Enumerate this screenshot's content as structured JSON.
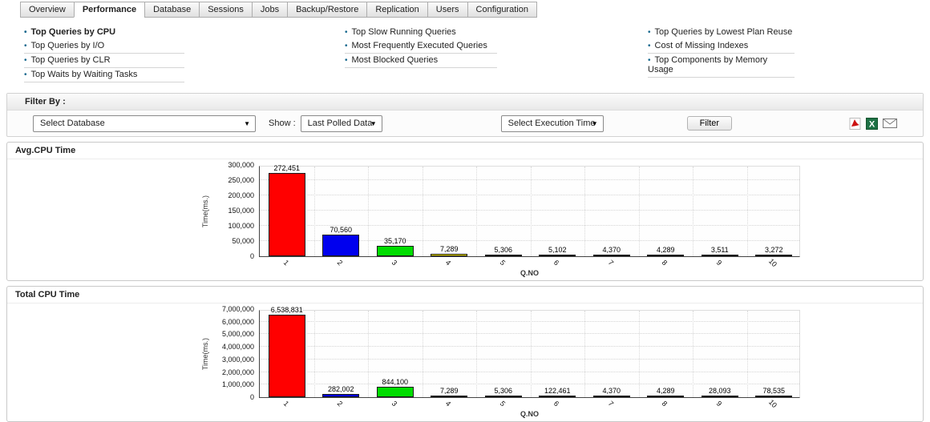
{
  "tabs": {
    "items": [
      {
        "label": "Overview",
        "active": false
      },
      {
        "label": "Performance",
        "active": true
      },
      {
        "label": "Database",
        "active": false
      },
      {
        "label": "Sessions",
        "active": false
      },
      {
        "label": "Jobs",
        "active": false
      },
      {
        "label": "Backup/Restore",
        "active": false
      },
      {
        "label": "Replication",
        "active": false
      },
      {
        "label": "Users",
        "active": false
      },
      {
        "label": "Configuration",
        "active": false
      }
    ]
  },
  "report_links": {
    "columns": [
      {
        "items": [
          {
            "label": "Top Queries by CPU",
            "bold": true
          },
          {
            "label": "Top Queries by I/O",
            "bold": false
          },
          {
            "label": "Top Queries by CLR",
            "bold": false
          },
          {
            "label": "Top Waits by Waiting Tasks",
            "bold": false
          }
        ]
      },
      {
        "items": [
          {
            "label": "Top Slow Running Queries",
            "bold": false
          },
          {
            "label": "Most Frequently Executed Queries",
            "bold": false
          },
          {
            "label": "Most Blocked Queries",
            "bold": false
          }
        ]
      },
      {
        "items": [
          {
            "label": "Top Queries by Lowest Plan Reuse",
            "bold": false
          },
          {
            "label": "Cost of Missing Indexes",
            "bold": false
          },
          {
            "label": "Top Components by Memory Usage",
            "bold": false
          }
        ]
      }
    ]
  },
  "filter": {
    "section_label": "Filter By :",
    "database_select_value": "Select Database",
    "show_label": "Show :",
    "show_select_value": "Last Polled Data",
    "execution_select_value": "Select Execution Time",
    "filter_button_label": "Filter",
    "icons": [
      "pdf-export-icon",
      "excel-export-icon",
      "email-icon"
    ],
    "icon_colors": {
      "pdf": "#cc1111",
      "excel": "#1e7145",
      "email": "#777777"
    }
  },
  "chart_data": [
    {
      "type": "bar",
      "title": "Avg.CPU Time",
      "xlabel": "Q.NO",
      "ylabel": "Time(ms.)",
      "categories": [
        "1",
        "2",
        "3",
        "4",
        "5",
        "6",
        "7",
        "8",
        "9",
        "10"
      ],
      "values": [
        272451,
        70560,
        35170,
        7289,
        5306,
        5102,
        4370,
        4289,
        3511,
        3272
      ],
      "value_labels": [
        "272,451",
        "70,560",
        "35,170",
        "7,289",
        "5,306",
        "5,102",
        "4,370",
        "4,289",
        "3,511",
        "3,272"
      ],
      "bar_colors": [
        "#ff0000",
        "#0000ee",
        "#00dd00",
        "#ffee00",
        "#ff9900",
        "#00cccc",
        "#cc00cc",
        "#000099",
        "#aa0000",
        "#000099"
      ],
      "ylim": [
        0,
        300000
      ],
      "ytick_labels": [
        "0",
        "50,000",
        "100,000",
        "150,000",
        "200,000",
        "250,000",
        "300,000"
      ],
      "grid": true,
      "legend": "none"
    },
    {
      "type": "bar",
      "title": "Total CPU Time",
      "xlabel": "Q.NO",
      "ylabel": "Time(ms.)",
      "categories": [
        "1",
        "2",
        "3",
        "4",
        "5",
        "6",
        "7",
        "8",
        "9",
        "10"
      ],
      "values": [
        6538831,
        282002,
        844100,
        7289,
        5306,
        122461,
        4370,
        4289,
        28093,
        78535
      ],
      "value_labels": [
        "6,538,831",
        "282,002",
        "844,100",
        "7,289",
        "5,306",
        "122,461",
        "4,370",
        "4,289",
        "28,093",
        "78,535"
      ],
      "bar_colors": [
        "#ff0000",
        "#0000ee",
        "#00dd00",
        "#ffee00",
        "#ff9900",
        "#00cccc",
        "#cc00cc",
        "#000099",
        "#aa0000",
        "#000099"
      ],
      "ylim": [
        0,
        7000000
      ],
      "ytick_labels": [
        "0",
        "1,000,000",
        "2,000,000",
        "3,000,000",
        "4,000,000",
        "5,000,000",
        "6,000,000",
        "7,000,000"
      ],
      "grid": true,
      "legend": "none"
    }
  ]
}
